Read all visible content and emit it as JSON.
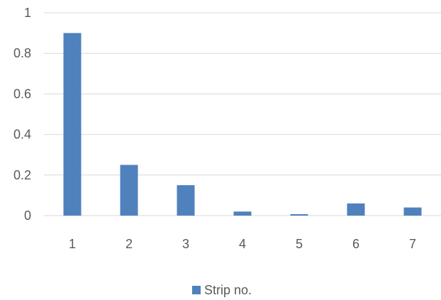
{
  "chart_data": {
    "type": "bar",
    "title": "",
    "xlabel": "",
    "ylabel": "",
    "categories": [
      "1",
      "2",
      "3",
      "4",
      "5",
      "6",
      "7"
    ],
    "series": [
      {
        "name": "Strip no.",
        "values": [
          0.9,
          0.25,
          0.15,
          0.02,
          0.007,
          0.06,
          0.04
        ],
        "color": "#4f81bd"
      }
    ],
    "ylim": [
      0,
      1
    ],
    "yticks": [
      "0",
      "0.2",
      "0.4",
      "0.6",
      "0.8",
      "1"
    ],
    "grid": true,
    "legend": {
      "position": "bottom",
      "entries": [
        "Strip no."
      ]
    }
  }
}
